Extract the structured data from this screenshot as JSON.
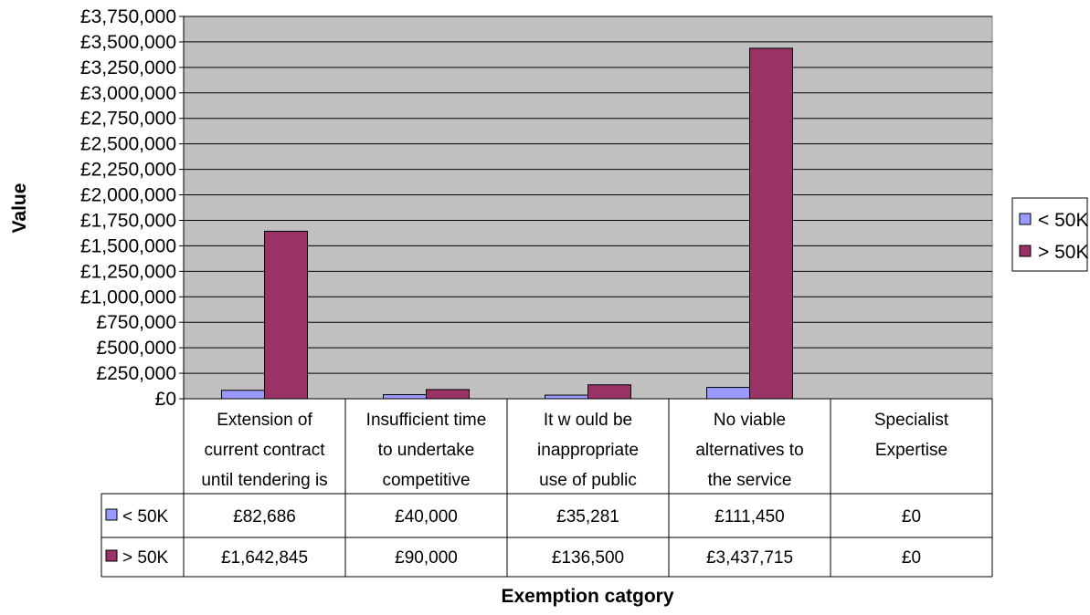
{
  "chart_data": {
    "type": "bar",
    "title": "",
    "xlabel": "Exemption catgory",
    "ylabel": "Value",
    "ylim": [
      0,
      3750000
    ],
    "ytick_step": 250000,
    "y_ticks": [
      "£0",
      "£250,000",
      "£500,000",
      "£750,000",
      "£1,000,000",
      "£1,250,000",
      "£1,500,000",
      "£1,750,000",
      "£2,000,000",
      "£2,250,000",
      "£2,500,000",
      "£2,750,000",
      "£3,000,000",
      "£3,250,000",
      "£3,500,000",
      "£3,750,000"
    ],
    "categories": [
      [
        "Extension of",
        "current contract",
        "until tendering is"
      ],
      [
        "Insufficient time",
        "to undertake",
        "competitive"
      ],
      [
        "It w ould be",
        "inappropriate",
        "use of public"
      ],
      [
        "No viable",
        "alternatives to",
        "the service"
      ],
      [
        "Specialist",
        "Expertise",
        ""
      ]
    ],
    "series": [
      {
        "name": "< 50K",
        "values": [
          82686,
          40000,
          35281,
          111450,
          0
        ],
        "labels": [
          "£82,686",
          "£40,000",
          "£35,281",
          "£111,450",
          "£0"
        ],
        "color": "#9999ff"
      },
      {
        "name": "> 50K",
        "values": [
          1642845,
          90000,
          136500,
          3437715,
          0
        ],
        "labels": [
          "£1,642,845",
          "£90,000",
          "£136,500",
          "£3,437,715",
          "£0"
        ],
        "color": "#993366"
      }
    ],
    "grid": true,
    "plot_background": "#c0c0c0",
    "legend": "right",
    "data_table": true
  }
}
